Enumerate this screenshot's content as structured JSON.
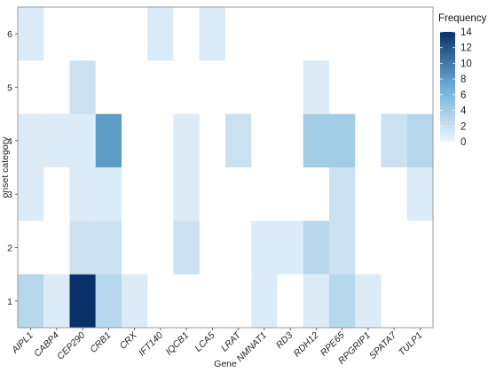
{
  "chart_data": {
    "type": "heatmap",
    "xlabel": "Gene",
    "ylabel": "onset category",
    "x_categories": [
      "AIPL1",
      "CABP4",
      "CEP290",
      "CRB1",
      "CRX",
      "IFT140",
      "IQCB1",
      "LCA5",
      "LRAT",
      "NMNAT1",
      "RD3",
      "RDH12",
      "RPE65",
      "RPGRIP1",
      "SPATA7",
      "TULP1"
    ],
    "y_categories": [
      "1",
      "2",
      "3",
      "4",
      "5",
      "6"
    ],
    "grid": false,
    "legend": {
      "title": "Frequency",
      "placement": "right",
      "min": 0,
      "max": 14,
      "ticks": [
        0,
        2,
        4,
        6,
        8,
        10,
        12,
        14
      ],
      "color_low": "#eef5fc",
      "color_high": "#0a3069"
    },
    "values": [
      [
        3,
        0,
        1,
        1,
        0,
        1
      ],
      [
        1,
        0,
        0,
        1,
        0,
        0
      ],
      [
        14,
        2,
        1,
        1,
        2,
        0
      ],
      [
        3,
        2,
        1,
        8,
        0,
        0
      ],
      [
        1,
        0,
        0,
        0,
        0,
        0
      ],
      [
        0,
        0,
        0,
        0,
        0,
        1
      ],
      [
        0,
        2,
        1,
        1,
        0,
        0
      ],
      [
        0,
        0,
        0,
        0,
        0,
        1
      ],
      [
        0,
        0,
        0,
        2,
        0,
        0
      ],
      [
        1,
        1,
        0,
        0,
        0,
        0
      ],
      [
        0,
        1,
        0,
        0,
        0,
        0
      ],
      [
        1,
        3,
        0,
        4,
        1,
        0
      ],
      [
        3,
        2,
        2,
        4,
        0,
        0
      ],
      [
        1,
        0,
        0,
        0,
        0,
        0
      ],
      [
        0,
        0,
        0,
        2,
        0,
        0
      ],
      [
        0,
        0,
        1,
        3,
        0,
        0
      ]
    ]
  }
}
